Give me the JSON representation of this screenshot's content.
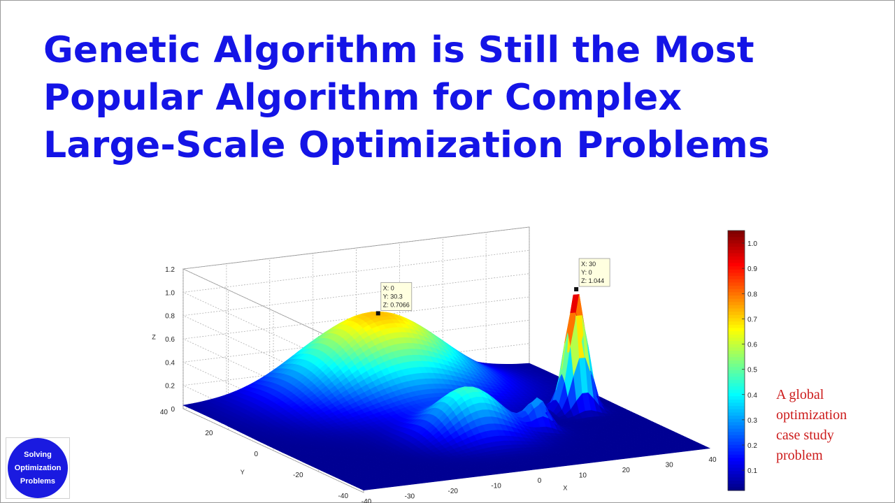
{
  "title": {
    "line1": "Genetic Algorithm is Still the Most",
    "line2": "Popular Algorithm for Complex",
    "line3": "Large-Scale Optimization Problems"
  },
  "caption": {
    "line1": "A global",
    "line2": "optimization",
    "line3": "case study",
    "line4": "problem"
  },
  "logo": {
    "line1": "Solving",
    "line2": "Optimization",
    "line3": "Problems"
  },
  "colors": {
    "title": "#1414e6",
    "caption": "#cc1a1a",
    "logo_bg": "#1a1ae0"
  },
  "chart_data": {
    "type": "surface3d",
    "zlabel": "Z",
    "xlabel": "X",
    "ylabel": "Y",
    "xlim": [
      -40,
      40
    ],
    "ylim": [
      -40,
      40
    ],
    "zlim": [
      0,
      1.2
    ],
    "x_ticks": [
      "-40",
      "-30",
      "-20",
      "-10",
      "0",
      "10",
      "20",
      "30",
      "40"
    ],
    "y_ticks": [
      "40",
      "20",
      "0",
      "-20",
      "-40"
    ],
    "z_ticks": [
      "0",
      "0.2",
      "0.4",
      "0.6",
      "0.8",
      "1.0",
      "1.2"
    ],
    "grid": true,
    "colormap": "jet",
    "colorbar_ticks": [
      "0.1",
      "0.2",
      "0.3",
      "0.4",
      "0.5",
      "0.6",
      "0.7",
      "0.8",
      "0.9",
      "1.0"
    ],
    "peaks": [
      {
        "x": 0,
        "y": 30.3,
        "z": 0.7066
      },
      {
        "x": 30,
        "y": 0,
        "z": 1.044
      },
      {
        "x": 0,
        "y": -10,
        "z": 0.42
      },
      {
        "x": 15,
        "y": -12,
        "z": 0.25
      }
    ],
    "datatips": [
      {
        "x": "X: 0",
        "y": "Y: 30.3",
        "z": "Z: 0.7066"
      },
      {
        "x": "X: 30",
        "y": "Y: 0",
        "z": "Z: 1.044"
      }
    ]
  }
}
